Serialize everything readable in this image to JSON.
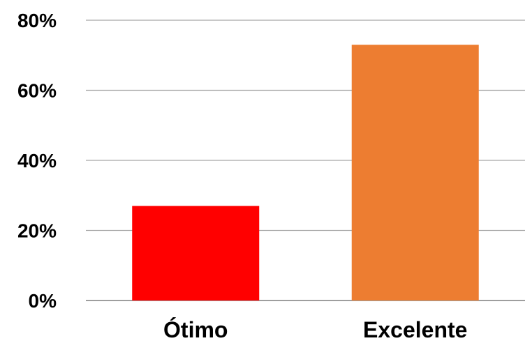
{
  "chart_data": {
    "type": "bar",
    "categories": [
      "Ótimo",
      "Excelente"
    ],
    "values": [
      27,
      73
    ],
    "ylim": [
      0,
      80
    ],
    "yticks": [
      0,
      20,
      40,
      60,
      80
    ],
    "ytick_labels": [
      "0%",
      "20%",
      "40%",
      "60%",
      "80%"
    ],
    "grid": true,
    "legend": "none",
    "bar_colors": [
      "#ff0000",
      "#ed7d31"
    ],
    "gridline_color": "#a6a6a6"
  }
}
